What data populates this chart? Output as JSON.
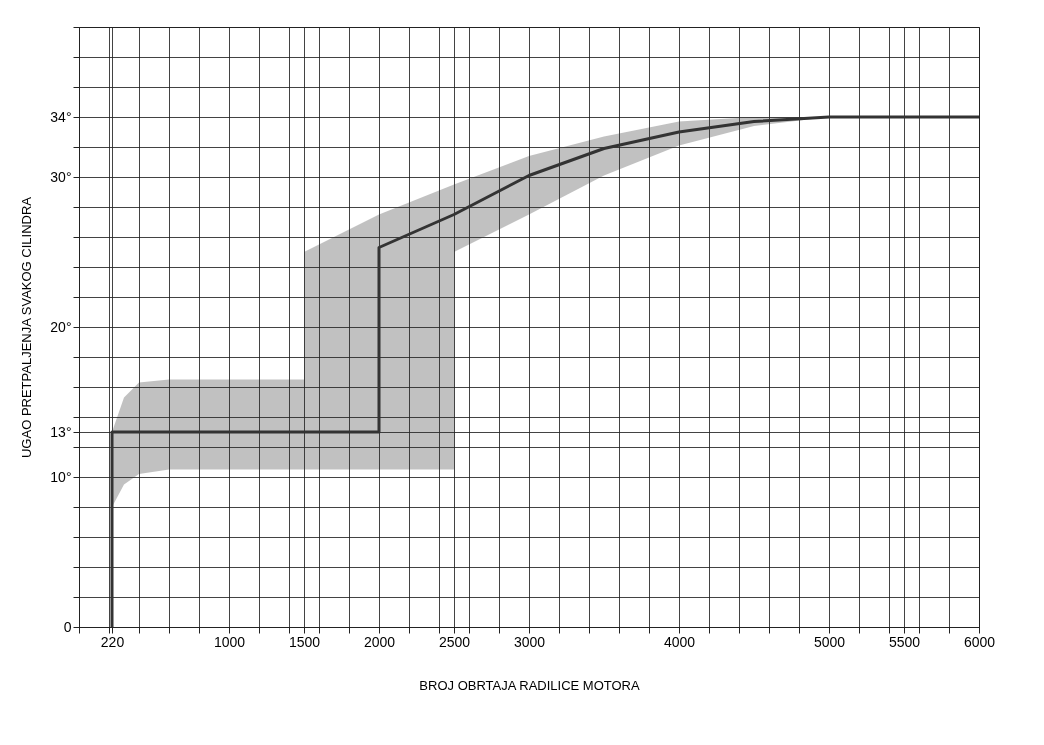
{
  "chart_data": {
    "type": "line",
    "xlabel": "BROJ OBRTAJA RADILICE MOTORA",
    "ylabel": "UGAO PRETPALJENJA SVAKOG CILINDRA",
    "x": [
      220,
      220,
      300,
      400,
      600,
      1500,
      1500,
      2000,
      2000,
      2500,
      2500,
      3000,
      3500,
      4000,
      4500,
      5000,
      5500,
      6000
    ],
    "series": [
      {
        "color": "#333333",
        "values": [
          0,
          13,
          13,
          13,
          13,
          13,
          13,
          13,
          25.3,
          27.5,
          27.5,
          30.1,
          31.9,
          33,
          33.7,
          34,
          34,
          34
        ],
        "lower": [
          null,
          8,
          9.5,
          10.2,
          10.5,
          10.5,
          10.5,
          10.5,
          10.5,
          10.5,
          25,
          27.5,
          30.1,
          32.1,
          33.4,
          34,
          34,
          34
        ],
        "upper": [
          null,
          13,
          15.3,
          16.3,
          16.5,
          16.5,
          25,
          27.5,
          27.5,
          29.5,
          29.5,
          31.4,
          32.7,
          33.7,
          34,
          34,
          34,
          34
        ]
      }
    ],
    "xlim": [
      0,
      6000
    ],
    "ylim": [
      0,
      40
    ],
    "xticks": [
      {
        "value": 0,
        "label": null
      },
      {
        "value": 200,
        "label": null
      },
      220,
      {
        "value": 400,
        "label": null
      },
      {
        "value": 600,
        "label": null
      },
      {
        "value": 800,
        "label": null
      },
      1000,
      {
        "value": 1200,
        "label": null
      },
      {
        "value": 1400,
        "label": null
      },
      1500,
      {
        "value": 1600,
        "label": null
      },
      {
        "value": 1800,
        "label": null
      },
      2000,
      {
        "value": 2200,
        "label": null
      },
      {
        "value": 2400,
        "label": null
      },
      2500,
      {
        "value": 2600,
        "label": null
      },
      {
        "value": 2800,
        "label": null
      },
      3000,
      {
        "value": 3200,
        "label": null
      },
      {
        "value": 3400,
        "label": null
      },
      {
        "value": 3600,
        "label": null
      },
      {
        "value": 3800,
        "label": null
      },
      4000,
      {
        "value": 4200,
        "label": null
      },
      {
        "value": 4400,
        "label": null
      },
      {
        "value": 4600,
        "label": null
      },
      {
        "value": 4800,
        "label": null
      },
      5000,
      {
        "value": 5200,
        "label": null
      },
      {
        "value": 5400,
        "label": null
      },
      5500,
      {
        "value": 5600,
        "label": null
      },
      {
        "value": 5800,
        "label": null
      },
      6000
    ],
    "yticks": [
      0,
      {
        "value": 2,
        "label": null
      },
      {
        "value": 4,
        "label": null
      },
      {
        "value": 6,
        "label": null
      },
      {
        "value": 8,
        "label": null
      },
      {
        "value": 10,
        "label": "10°"
      },
      {
        "value": 12,
        "label": null
      },
      {
        "value": 13,
        "label": "13°"
      },
      {
        "value": 14,
        "label": null
      },
      {
        "value": 16,
        "label": null
      },
      {
        "value": 18,
        "label": null
      },
      {
        "value": 20,
        "label": "20°"
      },
      {
        "value": 22,
        "label": null
      },
      {
        "value": 24,
        "label": null
      },
      {
        "value": 26,
        "label": null
      },
      {
        "value": 28,
        "label": null
      },
      {
        "value": 30,
        "label": "30°"
      },
      {
        "value": 32,
        "label": null
      },
      {
        "value": 34,
        "label": "34°"
      },
      {
        "value": 36,
        "label": null
      },
      {
        "value": 38,
        "label": null
      },
      {
        "value": 40,
        "label": null
      }
    ],
    "grid": true,
    "line_style": "solid",
    "marker": "none"
  }
}
